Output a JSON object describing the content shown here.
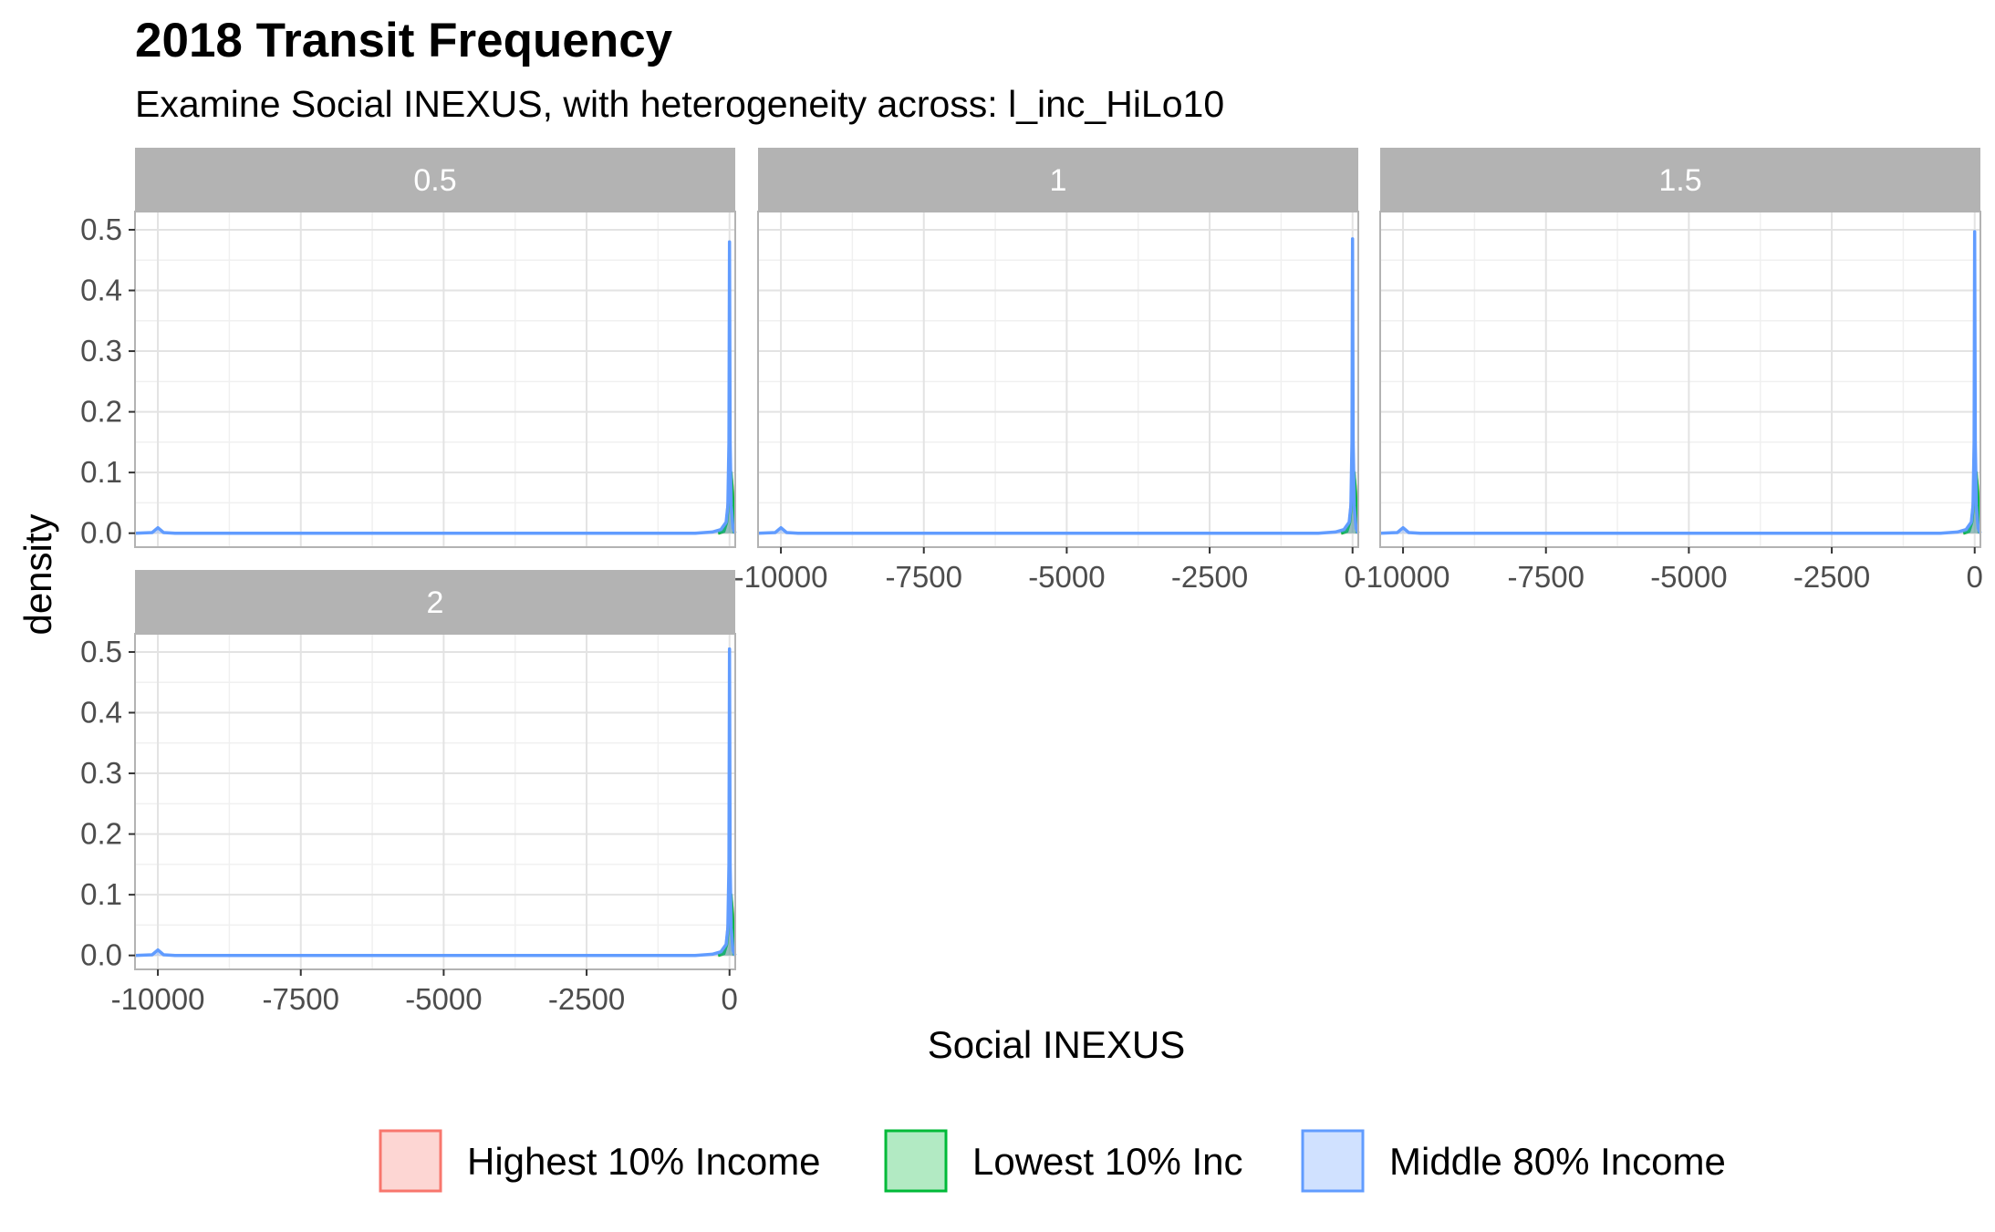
{
  "chart_data": {
    "type": "area",
    "title": "2018 Transit Frequency",
    "subtitle": "Examine Social INEXUS, with heterogeneity across: l_inc_HiLo10",
    "xlabel": "Social INEXUS",
    "ylabel": "density",
    "xlim": [
      -10400,
      100
    ],
    "ylim": [
      -0.023,
      0.53
    ],
    "x_ticks": [
      -10000,
      -7500,
      -5000,
      -2500,
      0
    ],
    "x_tick_labels": [
      "-10000",
      "-7500",
      "-5000",
      "-2500",
      "0"
    ],
    "y_ticks": [
      0,
      0.1,
      0.2,
      0.3,
      0.4,
      0.5
    ],
    "y_tick_labels": [
      "0.0",
      "0.1",
      "0.2",
      "0.3",
      "0.4",
      "0.5"
    ],
    "grid": true,
    "legend_position": "bottom",
    "panels": [
      {
        "label": "0.5",
        "series": [
          {
            "name": "Highest 10% Income",
            "color": "#f8766d",
            "x": [
              -200,
              -100,
              -50,
              -25,
              0,
              25,
              50,
              80
            ],
            "y": [
              0,
              0.003,
              0.02,
              0.05,
              0.08,
              0.1,
              0.072,
              0
            ]
          },
          {
            "name": "Lowest 10% Inc",
            "color": "#00ba38",
            "x": [
              -200,
              -100,
              -50,
              -25,
              0,
              25,
              50,
              80
            ],
            "y": [
              0,
              0.003,
              0.018,
              0.045,
              0.085,
              0.1,
              0.068,
              0
            ]
          },
          {
            "name": "Middle 80% Income",
            "color": "#619cff",
            "x": [
              -10400,
              -10100,
              -10000,
              -9900,
              -9700,
              -600,
              -300,
              -150,
              -60,
              -30,
              -10,
              0,
              10,
              30,
              60,
              100
            ],
            "y": [
              0,
              0.001,
              0.009,
              0.001,
              0,
              0,
              0.002,
              0.006,
              0.018,
              0.045,
              0.15,
              0.48,
              0.15,
              0.045,
              0.008,
              0
            ]
          }
        ]
      },
      {
        "label": "1",
        "series": [
          {
            "name": "Highest 10% Income",
            "color": "#f8766d",
            "x": [
              -200,
              -100,
              -50,
              -25,
              0,
              25,
              50,
              80
            ],
            "y": [
              0,
              0.003,
              0.02,
              0.05,
              0.08,
              0.1,
              0.072,
              0
            ]
          },
          {
            "name": "Lowest 10% Inc",
            "color": "#00ba38",
            "x": [
              -200,
              -100,
              -50,
              -25,
              0,
              25,
              50,
              80
            ],
            "y": [
              0,
              0.003,
              0.018,
              0.045,
              0.085,
              0.1,
              0.068,
              0
            ]
          },
          {
            "name": "Middle 80% Income",
            "color": "#619cff",
            "x": [
              -10400,
              -10100,
              -10000,
              -9900,
              -9700,
              -600,
              -300,
              -150,
              -60,
              -30,
              -10,
              0,
              10,
              30,
              60,
              100
            ],
            "y": [
              0,
              0.001,
              0.009,
              0.001,
              0,
              0,
              0.002,
              0.006,
              0.018,
              0.045,
              0.15,
              0.485,
              0.15,
              0.045,
              0.008,
              0
            ]
          }
        ]
      },
      {
        "label": "1.5",
        "series": [
          {
            "name": "Highest 10% Income",
            "color": "#f8766d",
            "x": [
              -200,
              -100,
              -50,
              -25,
              0,
              25,
              50,
              80
            ],
            "y": [
              0,
              0.003,
              0.02,
              0.05,
              0.08,
              0.1,
              0.072,
              0
            ]
          },
          {
            "name": "Lowest 10% Inc",
            "color": "#00ba38",
            "x": [
              -200,
              -100,
              -50,
              -25,
              0,
              25,
              50,
              80
            ],
            "y": [
              0,
              0.003,
              0.018,
              0.045,
              0.085,
              0.1,
              0.068,
              0
            ]
          },
          {
            "name": "Middle 80% Income",
            "color": "#619cff",
            "x": [
              -10400,
              -10100,
              -10000,
              -9900,
              -9700,
              -600,
              -300,
              -150,
              -60,
              -30,
              -10,
              0,
              10,
              30,
              60,
              100
            ],
            "y": [
              0,
              0.001,
              0.009,
              0.001,
              0,
              0,
              0.002,
              0.006,
              0.018,
              0.045,
              0.15,
              0.497,
              0.15,
              0.045,
              0.008,
              0
            ]
          }
        ]
      },
      {
        "label": "2",
        "series": [
          {
            "name": "Highest 10% Income",
            "color": "#f8766d",
            "x": [
              -200,
              -100,
              -50,
              -25,
              0,
              25,
              50,
              80
            ],
            "y": [
              0,
              0.003,
              0.02,
              0.05,
              0.08,
              0.1,
              0.072,
              0
            ]
          },
          {
            "name": "Lowest 10% Inc",
            "color": "#00ba38",
            "x": [
              -200,
              -100,
              -50,
              -25,
              0,
              25,
              50,
              80
            ],
            "y": [
              0,
              0.003,
              0.018,
              0.045,
              0.085,
              0.1,
              0.068,
              0
            ]
          },
          {
            "name": "Middle 80% Income",
            "color": "#619cff",
            "x": [
              -10400,
              -10100,
              -10000,
              -9900,
              -9700,
              -600,
              -300,
              -150,
              -60,
              -30,
              -10,
              0,
              10,
              30,
              60,
              100
            ],
            "y": [
              0,
              0.001,
              0.009,
              0.001,
              0,
              0,
              0.002,
              0.006,
              0.018,
              0.045,
              0.15,
              0.505,
              0.15,
              0.045,
              0.008,
              0
            ]
          }
        ]
      }
    ],
    "legend": [
      {
        "label": "Highest 10% Income",
        "color": "#f8766d",
        "fill": "#fdd6d3"
      },
      {
        "label": "Lowest 10% Inc",
        "color": "#00ba38",
        "fill": "#b2eac3"
      },
      {
        "label": "Middle 80% Income",
        "color": "#619cff",
        "fill": "#d0e1ff"
      }
    ]
  }
}
